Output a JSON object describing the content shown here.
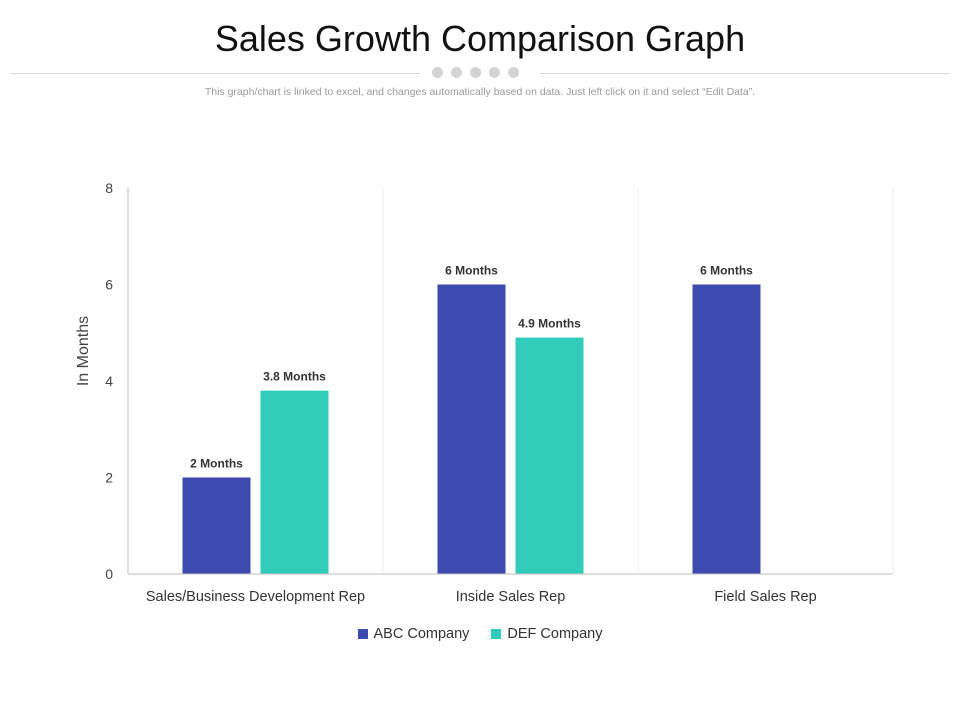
{
  "header": {
    "title": "Sales Growth Comparison Graph",
    "subtitle": "This graph/chart is linked to excel, and changes automatically based on data. Just left click on it and select “Edit Data”."
  },
  "chart_data": {
    "type": "bar",
    "title": "",
    "xlabel": "",
    "ylabel": "In Months",
    "ylim": [
      0,
      8
    ],
    "yticks": [
      0,
      2,
      4,
      6,
      8
    ],
    "grid": "vertical category separators",
    "legend_position": "bottom",
    "categories": [
      "Sales/Business Development Rep",
      "Inside Sales Rep",
      "Field Sales Rep"
    ],
    "series": [
      {
        "name": "ABC Company",
        "color": "#3e4bae",
        "values": [
          2,
          6,
          6
        ],
        "labels": [
          "2 Months",
          "6 Months",
          "6 Months"
        ]
      },
      {
        "name": "DEF Company",
        "color": "#31cdba",
        "values": [
          3.8,
          4.9,
          null
        ],
        "labels": [
          "3.8 Months",
          "4.9 Months",
          null
        ]
      }
    ]
  }
}
